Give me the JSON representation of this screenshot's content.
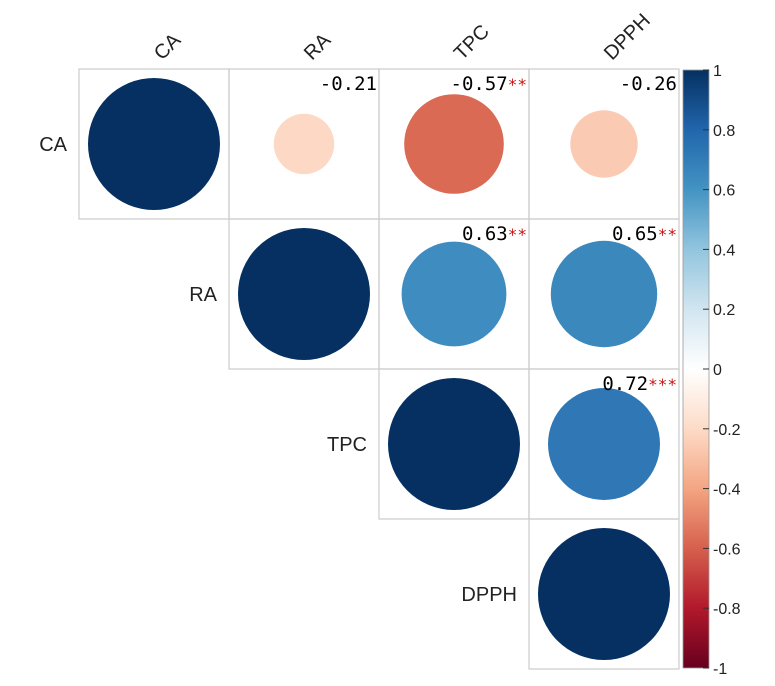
{
  "chart_data": {
    "type": "heatmap",
    "variables": [
      "CA",
      "RA",
      "TPC",
      "DPPH"
    ],
    "matrix": [
      [
        1,
        -0.21,
        -0.57,
        -0.26
      ],
      [
        -0.21,
        1,
        0.63,
        0.65
      ],
      [
        -0.57,
        0.63,
        1,
        0.72
      ],
      [
        -0.26,
        0.65,
        0.72,
        1
      ]
    ],
    "upper_labels": [
      {
        "row": 0,
        "col": 1,
        "text": "-0.21",
        "sig": ""
      },
      {
        "row": 0,
        "col": 2,
        "text": "-0.57",
        "sig": "**"
      },
      {
        "row": 0,
        "col": 3,
        "text": "-0.26",
        "sig": ""
      },
      {
        "row": 1,
        "col": 2,
        "text": "0.63",
        "sig": "**"
      },
      {
        "row": 1,
        "col": 3,
        "text": "0.65",
        "sig": "**"
      },
      {
        "row": 2,
        "col": 3,
        "text": "0.72",
        "sig": "***"
      }
    ],
    "colorbar": {
      "range": [
        -1,
        1
      ],
      "tick_labels": [
        "1",
        "0.8",
        "0.6",
        "0.4",
        "0.2",
        "0",
        "-0.2",
        "-0.4",
        "-0.6",
        "-0.8",
        "-1"
      ]
    },
    "colors": {
      "neg_strong": "#67001f",
      "neg_mid": "#d6604d",
      "neg_light": "#fddbc7",
      "neutral": "#ffffff",
      "pos_light": "#d1e5f0",
      "pos_mid": "#4393c3",
      "pos_strong": "#053061",
      "significance": "#cc1111",
      "grid": "#cccccc"
    },
    "grid": true,
    "legend": "right"
  }
}
